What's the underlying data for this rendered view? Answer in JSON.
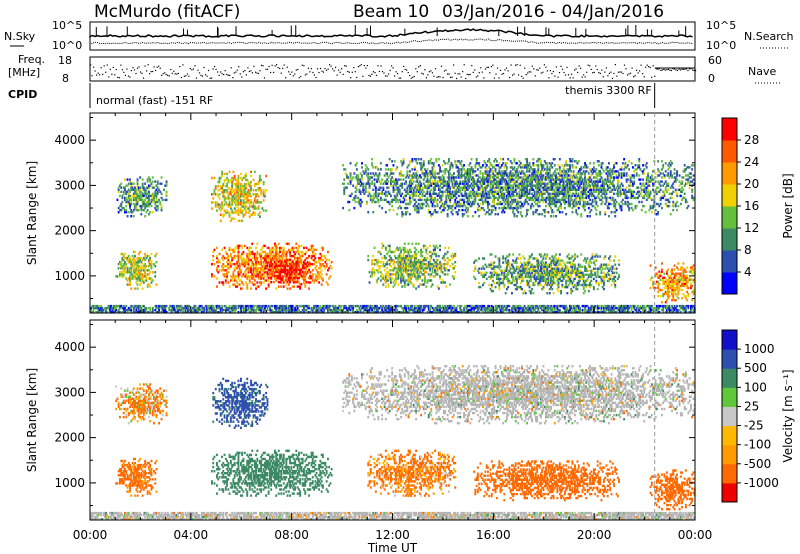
{
  "header": {
    "station": "McMurdo (fitACF)",
    "beam": "Beam 10",
    "date_range": "03/Jan/2016 - 04/Jan/2016"
  },
  "strips": {
    "nsky_label": "N.Sky",
    "nsearch_label": "N.Search",
    "noise_ticks": [
      "10^5",
      "10^0"
    ],
    "freq_label_top": "Freq.",
    "freq_label_bottom": "[MHz]",
    "freq_ticks": [
      "18",
      "8"
    ],
    "nave_label": "Nave",
    "nave_ticks": [
      "60",
      "0"
    ],
    "cpid_label": "CPID",
    "cpid_mode_1": "normal (fast) -151 RF",
    "cpid_mode_2": "themis 3300 RF",
    "cpid_mode_2_start_hour": 22.4
  },
  "colors": {
    "power_scale": [
      "#0000ff",
      "#2c4fb0",
      "#3c8a64",
      "#64c03c",
      "#f0d000",
      "#ff9a00",
      "#ff5a00",
      "#ff0000"
    ],
    "velocity_scale": [
      "#ee0000",
      "#ff6a00",
      "#ff9a00",
      "#ffb800",
      "#c8c8c8",
      "#5ec83a",
      "#3c8a64",
      "#2c4fb0",
      "#1010c8"
    ],
    "ground_scatter": "#b4b4b4"
  },
  "chart_data": [
    {
      "type": "heatmap",
      "name": "power",
      "xlabel": "Time UT",
      "ylabel": "Slant Range [km]",
      "xlim": [
        0,
        24
      ],
      "ylim": [
        180,
        4600
      ],
      "x_ticks": [
        "00:00",
        "04:00",
        "08:00",
        "12:00",
        "16:00",
        "20:00",
        "00:00"
      ],
      "y_ticks": [
        1000,
        2000,
        3000,
        4000
      ],
      "colorbar": {
        "label": "Power [dB]",
        "ticks": [
          4,
          8,
          12,
          16,
          20,
          24,
          28
        ],
        "range": [
          0,
          32
        ]
      },
      "echo_regions": [
        {
          "t0": 1.0,
          "t1": 2.6,
          "r0": 700,
          "r1": 1550,
          "level": 16
        },
        {
          "t0": 4.8,
          "t1": 9.6,
          "r0": 700,
          "r1": 1700,
          "level": 24
        },
        {
          "t0": 7.0,
          "t1": 8.8,
          "r0": 800,
          "r1": 1350,
          "level": 30
        },
        {
          "t0": 11.0,
          "t1": 14.5,
          "r0": 700,
          "r1": 1700,
          "level": 14
        },
        {
          "t0": 15.2,
          "t1": 21.0,
          "r0": 600,
          "r1": 1500,
          "level": 12
        },
        {
          "t0": 22.2,
          "t1": 24.0,
          "r0": 400,
          "r1": 1300,
          "level": 22
        },
        {
          "t0": 1.0,
          "t1": 3.0,
          "r0": 2300,
          "r1": 3200,
          "level": 10
        },
        {
          "t0": 4.8,
          "t1": 7.0,
          "r0": 2200,
          "r1": 3300,
          "level": 18
        },
        {
          "t0": 10.0,
          "t1": 24.0,
          "r0": 2300,
          "r1": 3600,
          "level": 10
        },
        {
          "t0": 0.0,
          "t1": 24.0,
          "r0": 180,
          "r1": 350,
          "level": 8
        }
      ]
    },
    {
      "type": "heatmap",
      "name": "velocity",
      "xlabel": "Time UT",
      "ylabel": "Slant Range [km]",
      "xlim": [
        0,
        24
      ],
      "ylim": [
        180,
        4600
      ],
      "x_ticks": [
        "00:00",
        "04:00",
        "08:00",
        "12:00",
        "16:00",
        "20:00",
        "00:00"
      ],
      "y_ticks": [
        1000,
        2000,
        3000,
        4000
      ],
      "colorbar": {
        "label": "Velocity [m s⁻¹]",
        "ticks": [
          "1000",
          "500",
          "100",
          "25",
          "-25",
          "-100",
          "-500",
          "-1000"
        ]
      },
      "echo_regions": [
        {
          "t0": 1.0,
          "t1": 2.6,
          "r0": 700,
          "r1": 1550,
          "velocity": -200
        },
        {
          "t0": 4.8,
          "t1": 9.6,
          "r0": 700,
          "r1": 1700,
          "velocity": 300
        },
        {
          "t0": 11.0,
          "t1": 14.5,
          "r0": 700,
          "r1": 1700,
          "velocity": -150
        },
        {
          "t0": 15.2,
          "t1": 21.0,
          "r0": 600,
          "r1": 1500,
          "velocity": -300
        },
        {
          "t0": 22.2,
          "t1": 24.0,
          "r0": 400,
          "r1": 1300,
          "velocity": -250
        },
        {
          "t0": 1.0,
          "t1": 3.0,
          "r0": 2300,
          "r1": 3200,
          "velocity": -100
        },
        {
          "t0": 4.8,
          "t1": 7.0,
          "r0": 2200,
          "r1": 3300,
          "velocity": 600
        },
        {
          "t0": 10.0,
          "t1": 24.0,
          "r0": 2300,
          "r1": 3600,
          "velocity": 0
        },
        {
          "t0": 0.0,
          "t1": 24.0,
          "r0": 180,
          "r1": 350,
          "velocity": 0
        }
      ]
    }
  ]
}
